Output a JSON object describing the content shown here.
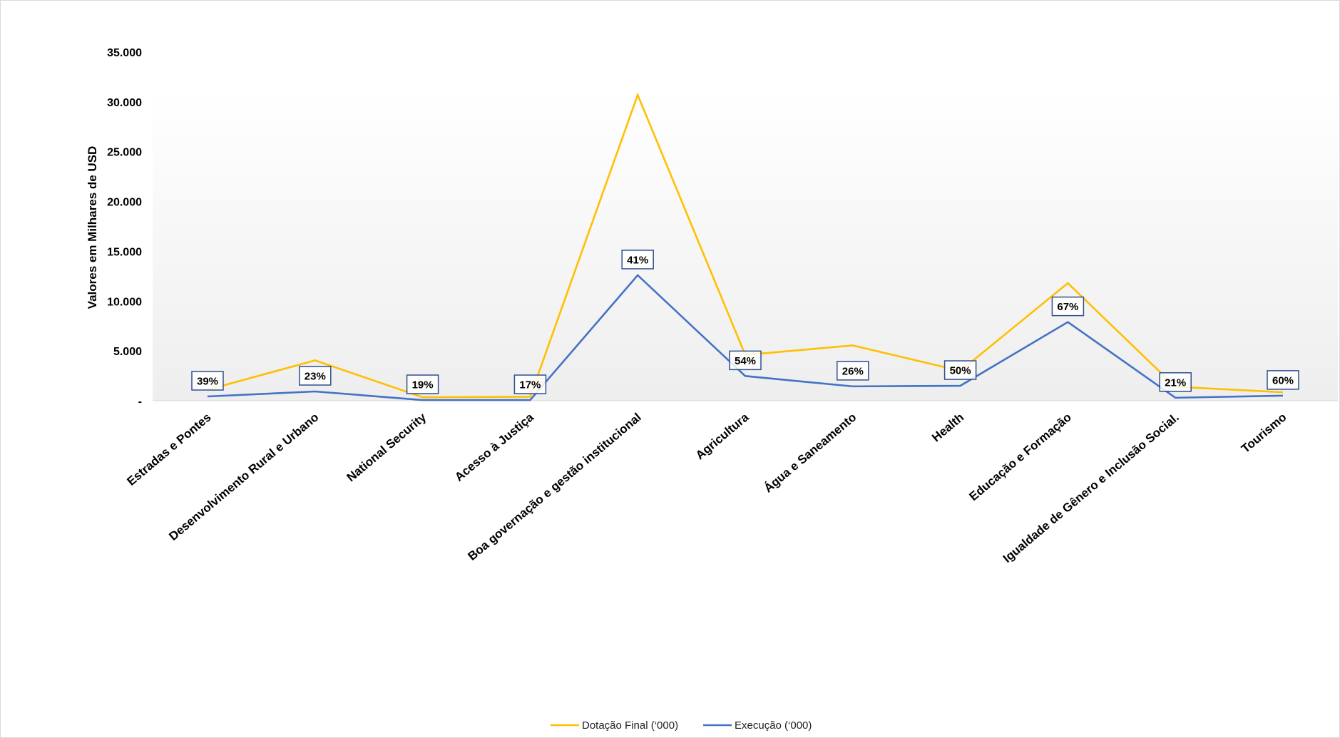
{
  "chart_data": {
    "type": "line",
    "title": "",
    "ylabel": "Valores em Milhares de USD",
    "xlabel": "",
    "ylim": [
      0,
      35000
    ],
    "yticks": [
      0,
      5000,
      10000,
      15000,
      20000,
      25000,
      30000,
      35000
    ],
    "ytick_labels": [
      "-",
      "5.000",
      "10.000",
      "15.000",
      "20.000",
      "25.000",
      "30.000",
      "35.000"
    ],
    "grid": false,
    "legend_position": "bottom",
    "categories": [
      "Estradas e Pontes",
      "Desenvolvimento Rural e Urbano",
      "National Security",
      "Acesso à Justiça",
      "Boa governação e gestão institucional",
      "Agricultura",
      "Água e Saneamento",
      "Health",
      "Educação e Formação",
      "Igualdade de Gênero e Inclusão Social.",
      "Tourismo"
    ],
    "series": [
      {
        "name": "Dotação Final (‘000)",
        "color": "#FFC000",
        "values": [
          1100,
          4050,
          350,
          400,
          30700,
          4600,
          5550,
          3000,
          11800,
          1400,
          850
        ]
      },
      {
        "name": "Execução (‘000)",
        "color": "#4472C4",
        "values": [
          430,
          930,
          70,
          70,
          12600,
          2480,
          1440,
          1500,
          7900,
          300,
          510
        ]
      }
    ],
    "data_labels": [
      "39%",
      "23%",
      "19%",
      "17%",
      "41%",
      "54%",
      "26%",
      "50%",
      "67%",
      "21%",
      "60%"
    ]
  }
}
